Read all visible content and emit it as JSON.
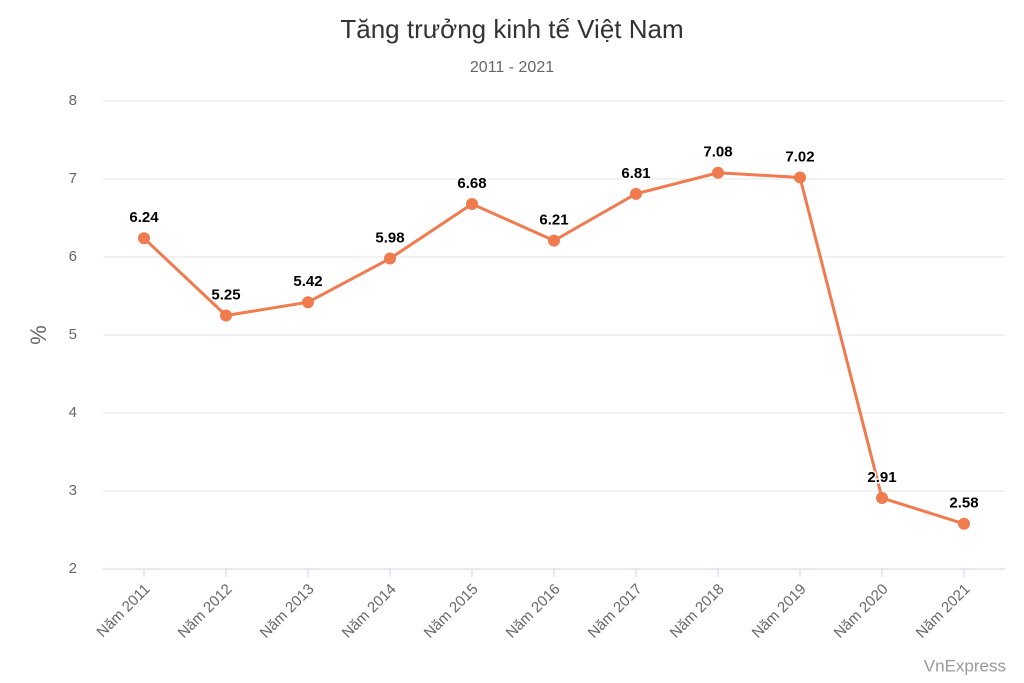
{
  "chart_data": {
    "type": "line",
    "title": "Tăng trưởng kinh tế Việt Nam",
    "subtitle": "2011 - 2021",
    "y_label": "%",
    "categories": [
      "Năm 2011",
      "Năm 2012",
      "Năm 2013",
      "Năm 2014",
      "Năm 2015",
      "Năm 2016",
      "Năm 2017",
      "Năm 2018",
      "Năm 2019",
      "Năm 2020",
      "Năm 2021"
    ],
    "values": [
      6.24,
      5.25,
      5.42,
      5.98,
      6.68,
      6.21,
      6.81,
      7.08,
      7.02,
      2.91,
      2.58
    ],
    "color": "#f07b4f",
    "ylim": [
      2,
      8
    ],
    "yticks": [
      2,
      3,
      4,
      5,
      6,
      7,
      8
    ],
    "grid": true,
    "credit": "VnExpress"
  }
}
